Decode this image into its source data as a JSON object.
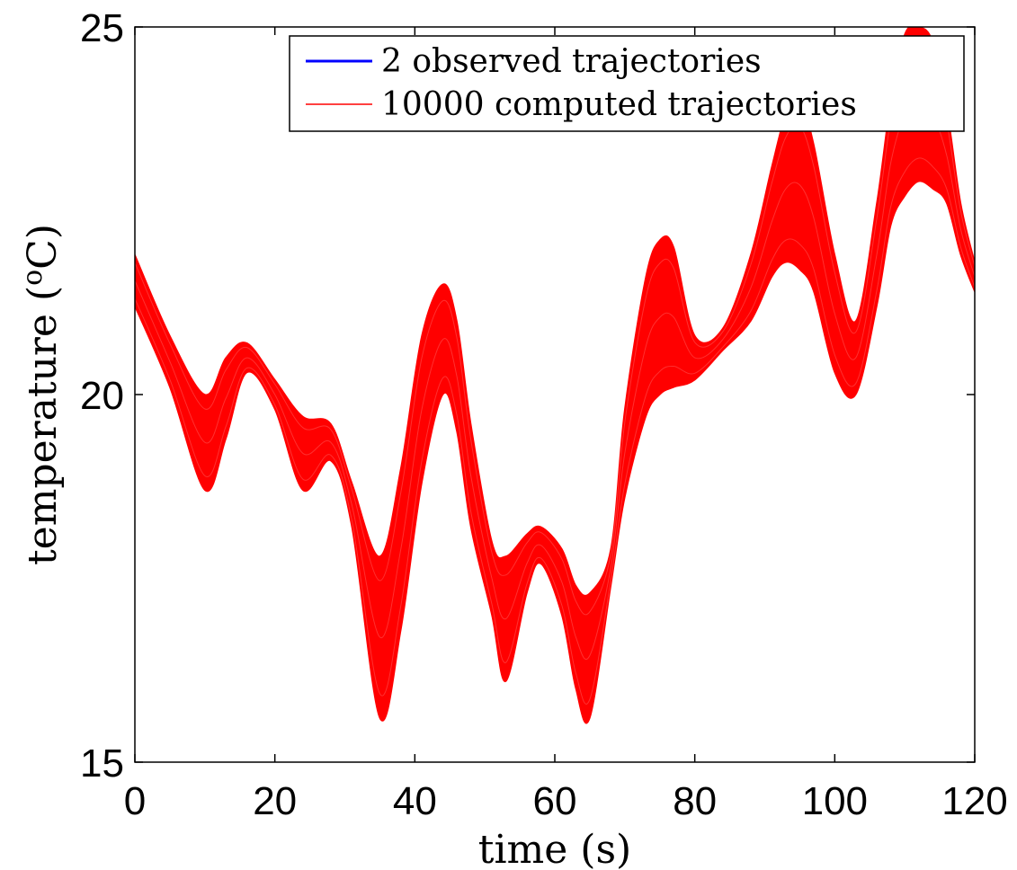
{
  "chart_data": {
    "type": "line",
    "title": "",
    "xlabel": "time (s)",
    "ylabel_parts": {
      "text": "temperature (",
      "sup": "o",
      "unit": "C)"
    },
    "xlim": [
      0,
      120
    ],
    "ylim": [
      15,
      25
    ],
    "x_ticks": [
      0,
      20,
      40,
      60,
      80,
      100,
      120
    ],
    "y_ticks": [
      15,
      20,
      25
    ],
    "x_tick_labels": [
      "0",
      "20",
      "40",
      "60",
      "80",
      "100",
      "120"
    ],
    "y_tick_labels": [
      "15",
      "20",
      "25"
    ],
    "grid": false,
    "legend_position": "top-right",
    "series": [
      {
        "name": "2 observed trajectories",
        "color": "#0000ff",
        "type": "line",
        "x": [],
        "y": []
      },
      {
        "name": "10000 computed trajectories",
        "color": "#ff0000",
        "type": "band",
        "x": [
          0,
          5,
          10,
          13,
          16,
          20,
          24,
          28,
          31,
          35,
          38,
          41,
          44,
          46,
          48,
          51,
          53,
          56,
          58,
          61,
          63,
          65,
          68,
          70,
          73,
          75,
          77,
          80,
          84,
          88,
          91,
          93,
          95,
          97,
          100,
          103,
          106,
          108,
          110,
          112,
          114,
          116,
          118,
          120
        ],
        "lower": [
          21.2,
          20.1,
          18.7,
          19.4,
          20.3,
          19.8,
          18.7,
          19.1,
          18.2,
          15.6,
          16.8,
          18.8,
          20.0,
          19.5,
          18.2,
          17.0,
          16.1,
          17.3,
          17.7,
          17.0,
          16.0,
          15.6,
          17.4,
          18.6,
          19.7,
          20.0,
          20.1,
          20.2,
          20.6,
          21.0,
          21.6,
          21.8,
          21.7,
          21.4,
          20.3,
          20.0,
          21.2,
          22.3,
          22.7,
          22.9,
          22.8,
          22.6,
          21.9,
          21.4
        ],
        "upper": [
          21.9,
          20.8,
          20.0,
          20.5,
          20.7,
          20.2,
          19.7,
          19.6,
          18.8,
          17.8,
          19.0,
          20.8,
          21.5,
          21.0,
          19.6,
          18.0,
          17.8,
          18.1,
          18.2,
          17.9,
          17.4,
          17.3,
          17.9,
          19.8,
          21.6,
          22.1,
          22.0,
          20.8,
          20.9,
          21.9,
          23.1,
          23.8,
          24.0,
          23.4,
          21.9,
          21.0,
          22.6,
          24.0,
          24.9,
          25.0,
          24.8,
          23.9,
          22.6,
          21.8
        ]
      }
    ]
  }
}
